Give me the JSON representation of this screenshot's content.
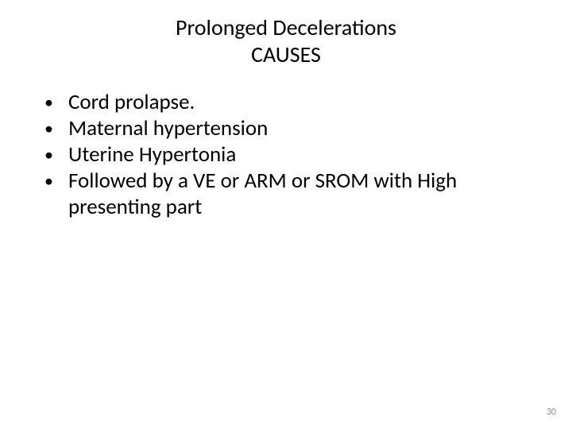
{
  "slide": {
    "title_line1": "Prolonged Decelerations",
    "title_line2": "CAUSES",
    "bullets": [
      "Cord prolapse.",
      "Maternal hypertension",
      "Uterine Hypertonia",
      "Followed by a VE or ARM or SROM with High presenting part"
    ],
    "page_number": "30",
    "style": {
      "background_color": "#ffffff",
      "text_color": "#000000",
      "page_number_color": "#8a8a8a",
      "title_fontsize": 28,
      "body_fontsize": 27,
      "page_number_fontsize": 12,
      "font_family": "Calibri"
    }
  }
}
